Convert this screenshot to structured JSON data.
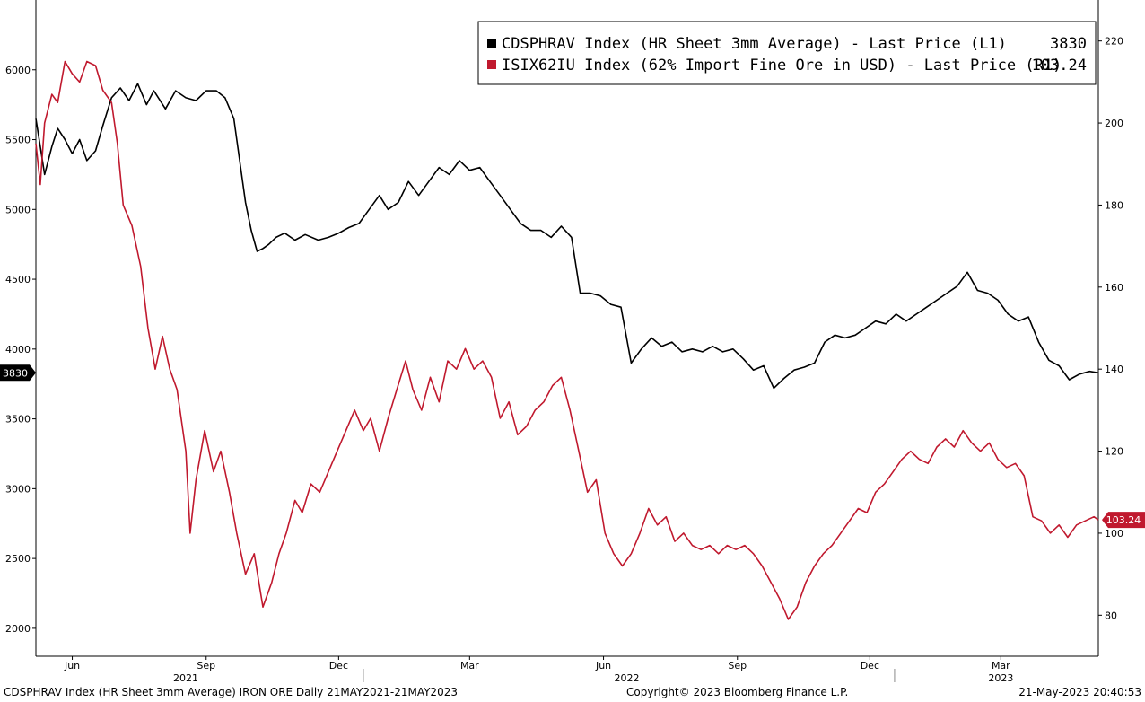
{
  "chart_data": {
    "type": "line",
    "title": "",
    "legend": {
      "placement": "top-right",
      "entries": [
        {
          "text": "CDSPHRAV Index (HR Sheet 3mm Average) - Last Price (L1)",
          "value": "3830",
          "color": "#000000"
        },
        {
          "text": "ISIX62IU Index (62% Import Fine Ore in USD) - Last Price (R1)",
          "value": "103.24",
          "color": "#c0192e"
        }
      ]
    },
    "x_range": [
      "2021-05-21",
      "2023-05-21"
    ],
    "x_ticks": [
      {
        "date": "2021-06-15",
        "label": "Jun"
      },
      {
        "date": "2021-09-15",
        "label": "Sep"
      },
      {
        "date": "2021-12-15",
        "label": "Dec"
      },
      {
        "date": "2022-03-15",
        "label": "Mar"
      },
      {
        "date": "2022-06-15",
        "label": "Jun"
      },
      {
        "date": "2022-09-15",
        "label": "Sep"
      },
      {
        "date": "2022-12-15",
        "label": "Dec"
      },
      {
        "date": "2023-03-15",
        "label": "Mar"
      }
    ],
    "year_labels": [
      {
        "date": "2021-09-01",
        "label": "2021"
      },
      {
        "date": "2022-07-01",
        "label": "2022"
      },
      {
        "date": "2023-03-15",
        "label": "2023"
      }
    ],
    "year_dividers": [
      "2022-01-01",
      "2023-01-01"
    ],
    "left_axis": {
      "ylim": [
        1800,
        6500
      ],
      "ticks": [
        2000,
        2500,
        3000,
        3500,
        4000,
        4500,
        5000,
        5500,
        6000
      ]
    },
    "right_axis": {
      "ylim": [
        70,
        230
      ],
      "ticks": [
        80,
        100,
        120,
        140,
        160,
        180,
        200,
        220
      ]
    },
    "last_value_tags": [
      {
        "axis": "left",
        "value": 3830,
        "text": "3830",
        "color": "#000000"
      },
      {
        "axis": "right",
        "value": 103.24,
        "text": "103.24",
        "color": "#c0192e"
      }
    ],
    "series": [
      {
        "name": "CDSPHRAV Index (HR Sheet 3mm Average) - Last Price (L1)",
        "axis": "left",
        "color": "#000000",
        "points": [
          [
            "2021-05-21",
            5650
          ],
          [
            "2021-05-24",
            5450
          ],
          [
            "2021-05-27",
            5250
          ],
          [
            "2021-06-01",
            5450
          ],
          [
            "2021-06-05",
            5580
          ],
          [
            "2021-06-10",
            5500
          ],
          [
            "2021-06-15",
            5400
          ],
          [
            "2021-06-20",
            5500
          ],
          [
            "2021-06-25",
            5350
          ],
          [
            "2021-07-01",
            5420
          ],
          [
            "2021-07-06",
            5600
          ],
          [
            "2021-07-12",
            5800
          ],
          [
            "2021-07-18",
            5870
          ],
          [
            "2021-07-24",
            5780
          ],
          [
            "2021-07-30",
            5900
          ],
          [
            "2021-08-05",
            5750
          ],
          [
            "2021-08-10",
            5850
          ],
          [
            "2021-08-18",
            5720
          ],
          [
            "2021-08-25",
            5850
          ],
          [
            "2021-09-01",
            5800
          ],
          [
            "2021-09-08",
            5780
          ],
          [
            "2021-09-15",
            5850
          ],
          [
            "2021-09-22",
            5850
          ],
          [
            "2021-09-28",
            5800
          ],
          [
            "2021-10-04",
            5650
          ],
          [
            "2021-10-08",
            5350
          ],
          [
            "2021-10-12",
            5050
          ],
          [
            "2021-10-16",
            4850
          ],
          [
            "2021-10-20",
            4700
          ],
          [
            "2021-10-24",
            4720
          ],
          [
            "2021-10-28",
            4750
          ],
          [
            "2021-11-02",
            4800
          ],
          [
            "2021-11-08",
            4830
          ],
          [
            "2021-11-15",
            4780
          ],
          [
            "2021-11-22",
            4820
          ],
          [
            "2021-12-01",
            4780
          ],
          [
            "2021-12-08",
            4800
          ],
          [
            "2021-12-15",
            4830
          ],
          [
            "2021-12-22",
            4870
          ],
          [
            "2021-12-29",
            4900
          ],
          [
            "2022-01-05",
            5000
          ],
          [
            "2022-01-12",
            5100
          ],
          [
            "2022-01-18",
            5000
          ],
          [
            "2022-01-25",
            5050
          ],
          [
            "2022-02-01",
            5200
          ],
          [
            "2022-02-08",
            5100
          ],
          [
            "2022-02-15",
            5200
          ],
          [
            "2022-02-22",
            5300
          ],
          [
            "2022-03-01",
            5250
          ],
          [
            "2022-03-08",
            5350
          ],
          [
            "2022-03-15",
            5280
          ],
          [
            "2022-03-22",
            5300
          ],
          [
            "2022-03-29",
            5200
          ],
          [
            "2022-04-05",
            5100
          ],
          [
            "2022-04-12",
            5000
          ],
          [
            "2022-04-19",
            4900
          ],
          [
            "2022-04-26",
            4850
          ],
          [
            "2022-05-03",
            4850
          ],
          [
            "2022-05-10",
            4800
          ],
          [
            "2022-05-17",
            4880
          ],
          [
            "2022-05-24",
            4800
          ],
          [
            "2022-05-30",
            4400
          ],
          [
            "2022-06-06",
            4400
          ],
          [
            "2022-06-13",
            4380
          ],
          [
            "2022-06-20",
            4320
          ],
          [
            "2022-06-27",
            4300
          ],
          [
            "2022-07-04",
            3900
          ],
          [
            "2022-07-11",
            4000
          ],
          [
            "2022-07-18",
            4080
          ],
          [
            "2022-07-25",
            4020
          ],
          [
            "2022-08-01",
            4050
          ],
          [
            "2022-08-08",
            3980
          ],
          [
            "2022-08-15",
            4000
          ],
          [
            "2022-08-22",
            3980
          ],
          [
            "2022-08-29",
            4020
          ],
          [
            "2022-09-05",
            3980
          ],
          [
            "2022-09-12",
            4000
          ],
          [
            "2022-09-19",
            3930
          ],
          [
            "2022-09-26",
            3850
          ],
          [
            "2022-10-03",
            3880
          ],
          [
            "2022-10-10",
            3720
          ],
          [
            "2022-10-17",
            3790
          ],
          [
            "2022-10-24",
            3850
          ],
          [
            "2022-10-31",
            3870
          ],
          [
            "2022-11-07",
            3900
          ],
          [
            "2022-11-14",
            4050
          ],
          [
            "2022-11-21",
            4100
          ],
          [
            "2022-11-28",
            4080
          ],
          [
            "2022-12-05",
            4100
          ],
          [
            "2022-12-12",
            4150
          ],
          [
            "2022-12-19",
            4200
          ],
          [
            "2022-12-26",
            4180
          ],
          [
            "2023-01-02",
            4250
          ],
          [
            "2023-01-09",
            4200
          ],
          [
            "2023-01-16",
            4250
          ],
          [
            "2023-01-23",
            4300
          ],
          [
            "2023-01-30",
            4350
          ],
          [
            "2023-02-06",
            4400
          ],
          [
            "2023-02-13",
            4450
          ],
          [
            "2023-02-20",
            4550
          ],
          [
            "2023-02-27",
            4420
          ],
          [
            "2023-03-06",
            4400
          ],
          [
            "2023-03-13",
            4350
          ],
          [
            "2023-03-20",
            4250
          ],
          [
            "2023-03-27",
            4200
          ],
          [
            "2023-04-03",
            4230
          ],
          [
            "2023-04-10",
            4050
          ],
          [
            "2023-04-17",
            3920
          ],
          [
            "2023-04-24",
            3880
          ],
          [
            "2023-05-01",
            3780
          ],
          [
            "2023-05-08",
            3820
          ],
          [
            "2023-05-15",
            3840
          ],
          [
            "2023-05-21",
            3830
          ]
        ]
      },
      {
        "name": "ISIX62IU Index (62% Import Fine Ore in USD) - Last Price (R1)",
        "axis": "right",
        "color": "#c0192e",
        "points": [
          [
            "2021-05-21",
            195
          ],
          [
            "2021-05-24",
            185
          ],
          [
            "2021-05-27",
            200
          ],
          [
            "2021-06-01",
            207
          ],
          [
            "2021-06-05",
            205
          ],
          [
            "2021-06-10",
            215
          ],
          [
            "2021-06-15",
            212
          ],
          [
            "2021-06-20",
            210
          ],
          [
            "2021-06-25",
            215
          ],
          [
            "2021-07-01",
            214
          ],
          [
            "2021-07-06",
            208
          ],
          [
            "2021-07-12",
            205
          ],
          [
            "2021-07-16",
            195
          ],
          [
            "2021-07-20",
            180
          ],
          [
            "2021-07-26",
            175
          ],
          [
            "2021-08-01",
            165
          ],
          [
            "2021-08-06",
            150
          ],
          [
            "2021-08-11",
            140
          ],
          [
            "2021-08-16",
            148
          ],
          [
            "2021-08-21",
            140
          ],
          [
            "2021-08-26",
            135
          ],
          [
            "2021-09-01",
            120
          ],
          [
            "2021-09-04",
            100
          ],
          [
            "2021-09-08",
            113
          ],
          [
            "2021-09-14",
            125
          ],
          [
            "2021-09-20",
            115
          ],
          [
            "2021-09-25",
            120
          ],
          [
            "2021-10-01",
            110
          ],
          [
            "2021-10-06",
            100
          ],
          [
            "2021-10-12",
            90
          ],
          [
            "2021-10-18",
            95
          ],
          [
            "2021-10-24",
            82
          ],
          [
            "2021-10-30",
            88
          ],
          [
            "2021-11-04",
            95
          ],
          [
            "2021-11-09",
            100
          ],
          [
            "2021-11-15",
            108
          ],
          [
            "2021-11-20",
            105
          ],
          [
            "2021-11-26",
            112
          ],
          [
            "2021-12-02",
            110
          ],
          [
            "2021-12-08",
            115
          ],
          [
            "2021-12-14",
            120
          ],
          [
            "2021-12-20",
            125
          ],
          [
            "2021-12-26",
            130
          ],
          [
            "2022-01-01",
            125
          ],
          [
            "2022-01-06",
            128
          ],
          [
            "2022-01-12",
            120
          ],
          [
            "2022-01-18",
            128
          ],
          [
            "2022-01-24",
            135
          ],
          [
            "2022-01-30",
            142
          ],
          [
            "2022-02-04",
            135
          ],
          [
            "2022-02-10",
            130
          ],
          [
            "2022-02-16",
            138
          ],
          [
            "2022-02-22",
            132
          ],
          [
            "2022-02-28",
            142
          ],
          [
            "2022-03-06",
            140
          ],
          [
            "2022-03-12",
            145
          ],
          [
            "2022-03-18",
            140
          ],
          [
            "2022-03-24",
            142
          ],
          [
            "2022-03-30",
            138
          ],
          [
            "2022-04-05",
            128
          ],
          [
            "2022-04-11",
            132
          ],
          [
            "2022-04-17",
            124
          ],
          [
            "2022-04-23",
            126
          ],
          [
            "2022-04-29",
            130
          ],
          [
            "2022-05-05",
            132
          ],
          [
            "2022-05-11",
            136
          ],
          [
            "2022-05-17",
            138
          ],
          [
            "2022-05-23",
            130
          ],
          [
            "2022-05-29",
            120
          ],
          [
            "2022-06-04",
            110
          ],
          [
            "2022-06-10",
            113
          ],
          [
            "2022-06-16",
            100
          ],
          [
            "2022-06-22",
            95
          ],
          [
            "2022-06-28",
            92
          ],
          [
            "2022-07-04",
            95
          ],
          [
            "2022-07-10",
            100
          ],
          [
            "2022-07-16",
            106
          ],
          [
            "2022-07-22",
            102
          ],
          [
            "2022-07-28",
            104
          ],
          [
            "2022-08-03",
            98
          ],
          [
            "2022-08-09",
            100
          ],
          [
            "2022-08-15",
            97
          ],
          [
            "2022-08-21",
            96
          ],
          [
            "2022-08-27",
            97
          ],
          [
            "2022-09-02",
            95
          ],
          [
            "2022-09-08",
            97
          ],
          [
            "2022-09-14",
            96
          ],
          [
            "2022-09-20",
            97
          ],
          [
            "2022-09-26",
            95
          ],
          [
            "2022-10-02",
            92
          ],
          [
            "2022-10-08",
            88
          ],
          [
            "2022-10-14",
            84
          ],
          [
            "2022-10-20",
            79
          ],
          [
            "2022-10-26",
            82
          ],
          [
            "2022-11-01",
            88
          ],
          [
            "2022-11-07",
            92
          ],
          [
            "2022-11-13",
            95
          ],
          [
            "2022-11-19",
            97
          ],
          [
            "2022-11-25",
            100
          ],
          [
            "2022-12-01",
            103
          ],
          [
            "2022-12-07",
            106
          ],
          [
            "2022-12-13",
            105
          ],
          [
            "2022-12-19",
            110
          ],
          [
            "2022-12-25",
            112
          ],
          [
            "2022-12-31",
            115
          ],
          [
            "2023-01-06",
            118
          ],
          [
            "2023-01-12",
            120
          ],
          [
            "2023-01-18",
            118
          ],
          [
            "2023-01-24",
            117
          ],
          [
            "2023-01-30",
            121
          ],
          [
            "2023-02-05",
            123
          ],
          [
            "2023-02-11",
            121
          ],
          [
            "2023-02-17",
            125
          ],
          [
            "2023-02-23",
            122
          ],
          [
            "2023-03-01",
            120
          ],
          [
            "2023-03-07",
            122
          ],
          [
            "2023-03-13",
            118
          ],
          [
            "2023-03-19",
            116
          ],
          [
            "2023-03-25",
            117
          ],
          [
            "2023-03-31",
            114
          ],
          [
            "2023-04-06",
            104
          ],
          [
            "2023-04-12",
            103
          ],
          [
            "2023-04-18",
            100
          ],
          [
            "2023-04-24",
            102
          ],
          [
            "2023-04-30",
            99
          ],
          [
            "2023-05-06",
            102
          ],
          [
            "2023-05-12",
            103
          ],
          [
            "2023-05-18",
            104
          ],
          [
            "2023-05-21",
            103.24
          ]
        ]
      }
    ]
  },
  "footer": {
    "left": "CDSPHRAV Index (HR Sheet 3mm Average) IRON ORE  Daily 21MAY2021-21MAY2023",
    "center": "Copyright© 2023 Bloomberg Finance L.P.",
    "right": "21-May-2023 20:40:53"
  }
}
